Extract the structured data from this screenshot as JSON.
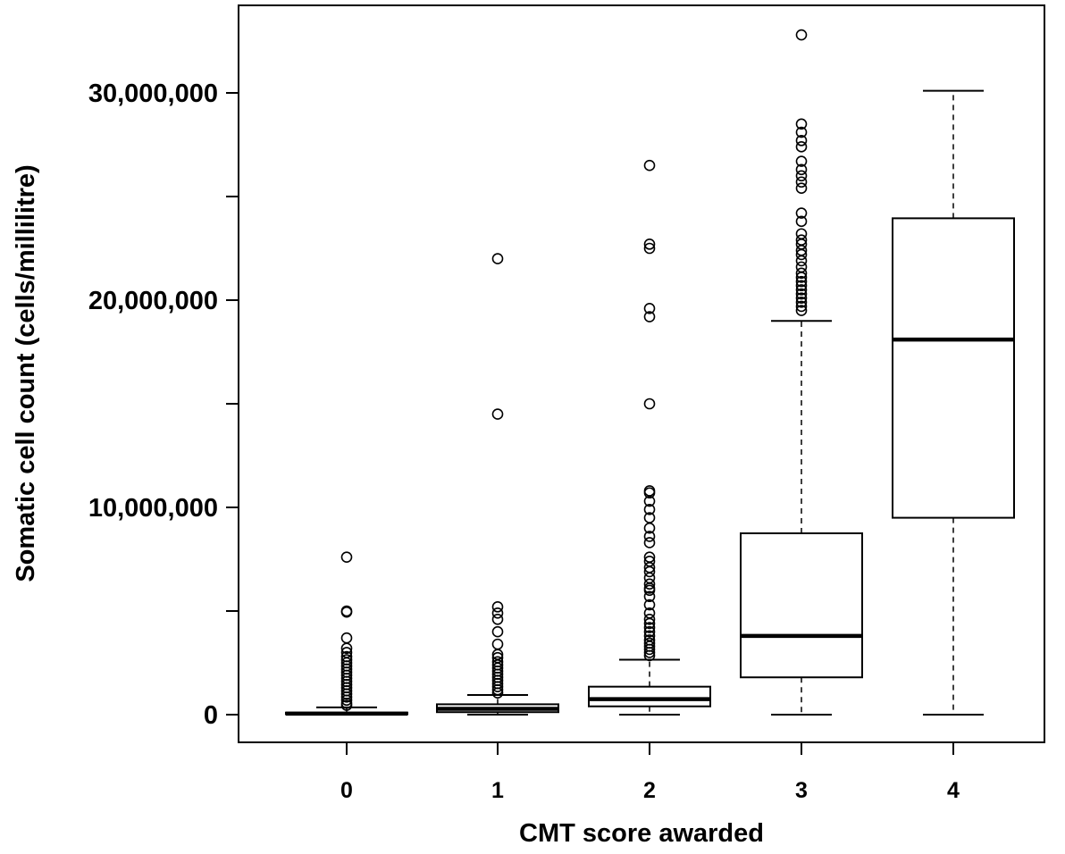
{
  "chart_data": {
    "type": "box",
    "title": "",
    "xlabel": "CMT score awarded",
    "ylabel": "Somatic cell count (cells/millilitre)",
    "categories": [
      "0",
      "1",
      "2",
      "3",
      "4"
    ],
    "y_ticks": [
      0,
      5000000,
      10000000,
      15000000,
      20000000,
      25000000,
      30000000
    ],
    "y_tick_labels": [
      "0",
      "",
      "10,000,000",
      "",
      "20,000,000",
      "",
      "30,000,000"
    ],
    "ylim": [
      -1400000,
      34100000
    ],
    "grid": false,
    "legend": "none",
    "boxes": [
      {
        "category": "0",
        "whisker_low": 0,
        "q1": 20000,
        "median": 50000,
        "q3": 100000,
        "whisker_high": 350000,
        "outliers": [
          7600000,
          5000000,
          4950000,
          3700000,
          3200000,
          3000000,
          2800000,
          2650000,
          2500000,
          2350000,
          2200000,
          2050000,
          1900000,
          1750000,
          1600000,
          1450000,
          1300000,
          1150000,
          1000000,
          850000,
          700000,
          550000,
          450000
        ]
      },
      {
        "category": "1",
        "whisker_low": 0,
        "q1": 120000,
        "median": 280000,
        "q3": 500000,
        "whisker_high": 950000,
        "outliers": [
          22000000,
          14500000,
          5200000,
          4900000,
          4600000,
          4000000,
          3400000,
          2900000,
          2750000,
          2550000,
          2400000,
          2250000,
          2100000,
          1950000,
          1800000,
          1650000,
          1500000,
          1350000,
          1200000,
          1050000
        ]
      },
      {
        "category": "2",
        "whisker_low": 0,
        "q1": 400000,
        "median": 750000,
        "q3": 1350000,
        "whisker_high": 2650000,
        "outliers": [
          26500000,
          22700000,
          22500000,
          19600000,
          19200000,
          15000000,
          10800000,
          10700000,
          10300000,
          9900000,
          9500000,
          9000000,
          8600000,
          8300000,
          7600000,
          7400000,
          7100000,
          6900000,
          6600000,
          6300000,
          6100000,
          6000000,
          5700000,
          5300000,
          4900000,
          4600000,
          4400000,
          4200000,
          4000000,
          3800000,
          3600000,
          3450000,
          3300000,
          3150000,
          3000000,
          2850000
        ]
      },
      {
        "category": "3",
        "whisker_low": 0,
        "q1": 1800000,
        "median": 3800000,
        "q3": 8750000,
        "whisker_high": 19000000,
        "outliers": [
          32800000,
          28500000,
          28100000,
          27700000,
          27400000,
          26700000,
          26300000,
          26000000,
          25700000,
          25400000,
          24200000,
          23800000,
          23200000,
          22900000,
          22700000,
          22400000,
          22200000,
          21900000,
          21600000,
          21300000,
          21100000,
          20900000,
          20700000,
          20500000,
          20300000,
          20100000,
          19900000,
          19700000,
          19500000
        ]
      },
      {
        "category": "4",
        "whisker_low": 0,
        "q1": 9500000,
        "median": 18100000,
        "q3": 23950000,
        "whisker_high": 30100000,
        "outliers": []
      }
    ]
  }
}
